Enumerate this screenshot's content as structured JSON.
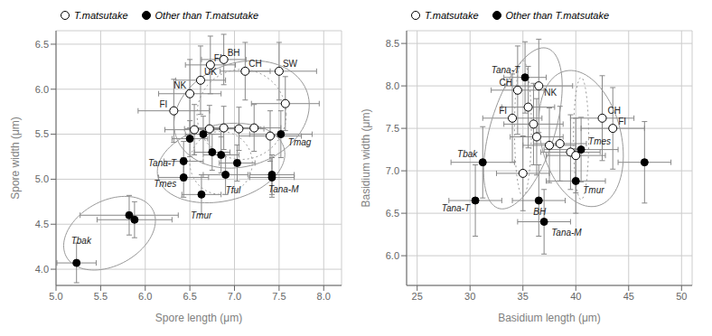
{
  "chart_data": [
    {
      "type": "scatter",
      "xlabel": "Spore length (μm)",
      "ylabel": "Spore width (μm)",
      "xlim": [
        5.0,
        8.2
      ],
      "ylim": [
        3.82,
        6.65
      ],
      "xticks": [
        {
          "value": 5.0,
          "label": "5.0"
        },
        5.5,
        {
          "value": 6.0,
          "label": "6.0"
        },
        6.5,
        {
          "value": 7.0,
          "label": "7.0"
        },
        7.5,
        {
          "value": 8.0,
          "label": "8.0"
        }
      ],
      "yticks": [
        {
          "value": 4.0,
          "label": "4.0"
        },
        4.5,
        {
          "value": 5.0,
          "label": "5.0"
        },
        5.5,
        {
          "value": 6.0,
          "label": "6.0"
        },
        6.5
      ],
      "grid": true,
      "legend": "upper left",
      "series": [
        {
          "name": "T.matsutake",
          "color": "#000000",
          "marker": "open_circle",
          "points": [
            {
              "label": "NK",
              "x": 6.5,
              "y": 5.95,
              "xerr": 0.35,
              "yerr": 0.38
            },
            {
              "label": "UK",
              "x": 6.62,
              "y": 6.1,
              "xerr": 0.28,
              "yerr": 0.38
            },
            {
              "label": "FI",
              "x": 6.73,
              "y": 6.27,
              "xerr": 0.28,
              "yerr": 0.32
            },
            {
              "label": "BH",
              "x": 6.88,
              "y": 6.33,
              "xerr": 0.25,
              "yerr": 0.28
            },
            {
              "label": "CH",
              "x": 7.12,
              "y": 6.2,
              "xerr": 0.28,
              "yerr": 0.32
            },
            {
              "label": "SW",
              "x": 7.5,
              "y": 6.2,
              "xerr": 0.42,
              "yerr": 0.32
            },
            {
              "label": "FI",
              "x": 6.32,
              "y": 5.76,
              "xerr": 0.4,
              "yerr": 0.35
            },
            {
              "x": 6.55,
              "y": 5.55,
              "xerr": 0.33,
              "yerr": 0.28
            },
            {
              "x": 6.72,
              "y": 5.56,
              "xerr": 0.28,
              "yerr": 0.26
            },
            {
              "x": 6.88,
              "y": 5.57,
              "xerr": 0.3,
              "yerr": 0.24
            },
            {
              "x": 7.05,
              "y": 5.56,
              "xerr": 0.28,
              "yerr": 0.24
            },
            {
              "x": 7.22,
              "y": 5.57,
              "xerr": 0.3,
              "yerr": 0.26
            },
            {
              "x": 7.4,
              "y": 5.48,
              "xerr": 0.35,
              "yerr": 0.28
            },
            {
              "x": 7.57,
              "y": 5.84,
              "xerr": 0.38,
              "yerr": 0.3
            }
          ]
        },
        {
          "name": "Other than T.matsutake",
          "color": "#000000",
          "marker": "filled_circle",
          "points": [
            {
              "label": "Tbak",
              "x": 5.23,
              "y": 4.07,
              "xerr": 0.22,
              "yerr": 0.22
            },
            {
              "x": 5.82,
              "y": 4.6,
              "xerr": 0.55,
              "yerr": 0.22
            },
            {
              "x": 5.88,
              "y": 4.55,
              "xerr": 0.42,
              "yerr": 0.2
            },
            {
              "label": "Tana-T",
              "x": 6.43,
              "y": 5.2,
              "xerr": 0.22,
              "yerr": 0.22
            },
            {
              "x": 6.5,
              "y": 5.45,
              "xerr": 0.2,
              "yerr": 0.2
            },
            {
              "label": "Tmes",
              "x": 6.43,
              "y": 5.02,
              "xerr": 0.28,
              "yerr": 0.22
            },
            {
              "label": "Tmur",
              "x": 6.63,
              "y": 4.83,
              "xerr": 0.22,
              "yerr": 0.22
            },
            {
              "label": "Tful",
              "x": 6.9,
              "y": 5.05,
              "xerr": 0.25,
              "yerr": 0.22
            },
            {
              "label": "Tana-M",
              "x": 7.42,
              "y": 5.02,
              "xerr": 0.25,
              "yerr": 0.22
            },
            {
              "label": "Tmag",
              "x": 7.52,
              "y": 5.5,
              "xerr": 0.35,
              "yerr": 0.26
            },
            {
              "x": 6.65,
              "y": 5.5,
              "xerr": 0.2,
              "yerr": 0.2
            },
            {
              "x": 6.75,
              "y": 5.3,
              "xerr": 0.2,
              "yerr": 0.2
            },
            {
              "x": 6.85,
              "y": 5.27,
              "xerr": 0.2,
              "yerr": 0.2
            },
            {
              "x": 7.03,
              "y": 5.18,
              "xerr": 0.2,
              "yerr": 0.2
            },
            {
              "x": 7.42,
              "y": 5.05,
              "xerr": 0.25,
              "yerr": 0.22
            }
          ]
        }
      ],
      "ellipses": [
        {
          "x": 7.08,
          "y": 5.72,
          "width": 1.55,
          "height": 1.15,
          "angle": 18,
          "line_style": "solid",
          "color": "#999999"
        },
        {
          "x": 5.6,
          "y": 4.4,
          "width": 1.1,
          "height": 0.72,
          "angle": 28,
          "line_style": "solid",
          "color": "#999999"
        },
        {
          "x": 6.85,
          "y": 5.18,
          "width": 1.45,
          "height": 0.85,
          "angle": 12,
          "line_style": "solid",
          "color": "#999999"
        }
      ],
      "circles": [
        {
          "x": 7.08,
          "y": 5.72,
          "r": 0.5,
          "line_style": "dotted",
          "color": "#999999"
        },
        {
          "x": 6.85,
          "y": 5.18,
          "r": 0.35,
          "line_style": "dotted",
          "color": "#999999"
        }
      ]
    },
    {
      "type": "scatter",
      "xlabel": "Basidium length (μm)",
      "ylabel": "Basidium width (μm)",
      "xlim": [
        24,
        51
      ],
      "ylim": [
        5.65,
        8.65
      ],
      "xticks": [
        25,
        30,
        35,
        40,
        45,
        50
      ],
      "yticks": [
        {
          "value": 6.0,
          "label": "6.0"
        },
        6.5,
        {
          "value": 7.0,
          "label": "7.0"
        },
        7.5,
        {
          "value": 8.0,
          "label": "8.0"
        },
        8.5
      ],
      "grid": true,
      "legend": "upper left",
      "series": [
        {
          "name": "T.matsutake",
          "color": "#000000",
          "marker": "open_circle",
          "points": [
            {
              "label": "NK",
              "x": 36.5,
              "y": 8.0,
              "xerr": 3.2,
              "yerr": 0.55
            },
            {
              "label": "CH",
              "x": 34.5,
              "y": 7.95,
              "xerr": 2.5,
              "yerr": 0.52
            },
            {
              "label": "FI",
              "x": 34.0,
              "y": 7.62,
              "xerr": 2.8,
              "yerr": 0.52
            },
            {
              "x": 35.5,
              "y": 7.75,
              "xerr": 2.5,
              "yerr": 0.48
            },
            {
              "x": 36.0,
              "y": 7.55,
              "xerr": 2.8,
              "yerr": 0.48
            },
            {
              "x": 36.3,
              "y": 7.4,
              "xerr": 2.5,
              "yerr": 0.45
            },
            {
              "label": "CH",
              "x": 42.5,
              "y": 7.62,
              "xerr": 3.0,
              "yerr": 0.5
            },
            {
              "label": "FI",
              "x": 43.5,
              "y": 7.5,
              "xerr": 3.0,
              "yerr": 0.48
            },
            {
              "x": 37.5,
              "y": 7.3,
              "xerr": 2.5,
              "yerr": 0.44
            },
            {
              "x": 38.5,
              "y": 7.32,
              "xerr": 2.5,
              "yerr": 0.44
            },
            {
              "x": 39.5,
              "y": 7.22,
              "xerr": 2.8,
              "yerr": 0.44
            },
            {
              "x": 40.0,
              "y": 7.18,
              "xerr": 2.8,
              "yerr": 0.44
            },
            {
              "x": 35.0,
              "y": 6.97,
              "xerr": 2.5,
              "yerr": 0.44
            }
          ]
        },
        {
          "name": "Other than T.matsutake",
          "color": "#000000",
          "marker": "filled_circle",
          "points": [
            {
              "label": "Tana-T",
              "x": 35.2,
              "y": 8.1,
              "xerr": 2.0,
              "yerr": 0.42
            },
            {
              "label": "Tbak",
              "x": 31.2,
              "y": 7.1,
              "xerr": 3.0,
              "yerr": 0.42
            },
            {
              "label": "Tana-T",
              "x": 30.5,
              "y": 6.65,
              "xerr": 2.5,
              "yerr": 0.42
            },
            {
              "label": "BH",
              "x": 36.5,
              "y": 6.65,
              "xerr": 2.5,
              "yerr": 0.42
            },
            {
              "label": "Tana-M",
              "x": 37.0,
              "y": 6.4,
              "xerr": 2.5,
              "yerr": 0.38
            },
            {
              "label": "Tmes",
              "x": 40.5,
              "y": 7.25,
              "xerr": 3.5,
              "yerr": 0.38
            },
            {
              "label": "Tmur",
              "x": 40.0,
              "y": 6.88,
              "xerr": 2.8,
              "yerr": 0.38
            },
            {
              "x": 46.5,
              "y": 7.1,
              "xerr": 2.5,
              "yerr": 0.48
            }
          ]
        }
      ],
      "ellipses": [
        {
          "x": 35.0,
          "y": 7.5,
          "width": 7.5,
          "height": 1.6,
          "angle": 8,
          "line_style": "solid",
          "color": "#999999"
        },
        {
          "x": 40.5,
          "y": 7.38,
          "width": 8.0,
          "height": 1.55,
          "angle": -3,
          "line_style": "solid",
          "color": "#999999"
        }
      ],
      "circles": [
        {
          "x": 35.0,
          "y": 7.5,
          "r": 0.8,
          "line_style": "dotted",
          "color": "#999999"
        },
        {
          "x": 40.5,
          "y": 7.38,
          "r": 0.72,
          "line_style": "dotted",
          "color": "#999999"
        }
      ]
    }
  ]
}
